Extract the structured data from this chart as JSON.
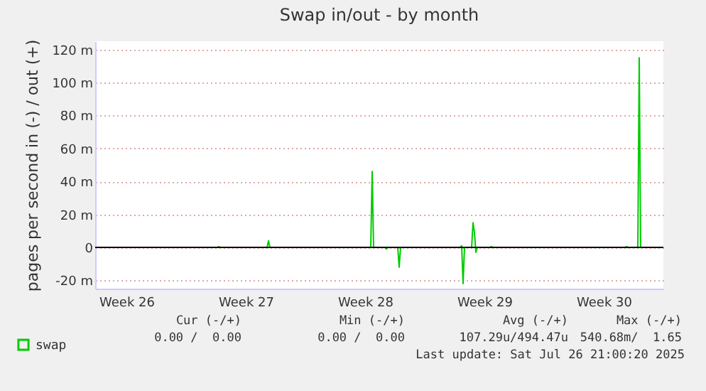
{
  "chart_data": {
    "type": "line",
    "title": "Swap in/out - by month",
    "ylabel": "pages per second in (-) / out (+)",
    "x": [
      "2025-06-24T16:00",
      "2025-07-01T20:00",
      "2025-07-01T22:00",
      "2025-07-02T00:00",
      "2025-07-04T18:00",
      "2025-07-04T20:00",
      "2025-07-04T22:00",
      "2025-07-10T20:00",
      "2025-07-10T22:00",
      "2025-07-11T00:00",
      "2025-07-11T16:00",
      "2025-07-11T18:00",
      "2025-07-11T20:00",
      "2025-07-12T10:00",
      "2025-07-12T12:00",
      "2025-07-12T14:00",
      "2025-07-16T02:00",
      "2025-07-16T04:00",
      "2025-07-16T06:00",
      "2025-07-16T08:00",
      "2025-07-16T18:00",
      "2025-07-16T20:00",
      "2025-07-16T22:00",
      "2025-07-17T00:00",
      "2025-07-17T02:00",
      "2025-07-17T20:00",
      "2025-07-17T22:00",
      "2025-07-18T00:00",
      "2025-07-25T18:00",
      "2025-07-25T20:00",
      "2025-07-25T22:00",
      "2025-07-26T12:00",
      "2025-07-26T14:00",
      "2025-07-26T16:00",
      "2025-07-26T20:00"
    ],
    "series": [
      {
        "name": "swap",
        "color": "#00cc00",
        "values": [
          0,
          0,
          0.5,
          0,
          0,
          4,
          0,
          0,
          46,
          0,
          0,
          -1,
          0,
          0,
          -12,
          0,
          0,
          1,
          -22,
          0,
          0,
          15,
          9,
          -3,
          0,
          0,
          0.5,
          0,
          0,
          0.5,
          0,
          0,
          115,
          0,
          0
        ]
      }
    ],
    "xlim": [
      "2025-06-24T16:00",
      "2025-07-28T00:00"
    ],
    "xticks": [
      {
        "value": "2025-06-26T12:00",
        "label": "Week 26"
      },
      {
        "value": "2025-07-03T12:00",
        "label": "Week 27"
      },
      {
        "value": "2025-07-10T12:00",
        "label": "Week 28"
      },
      {
        "value": "2025-07-17T12:00",
        "label": "Week 29"
      },
      {
        "value": "2025-07-24T12:00",
        "label": "Week 30"
      }
    ],
    "ylim": [
      -25,
      125
    ],
    "yticks": [
      {
        "value": -20,
        "label": "-20 m"
      },
      {
        "value": 0,
        "label": "0"
      },
      {
        "value": 20,
        "label": "20 m"
      },
      {
        "value": 40,
        "label": "40 m"
      },
      {
        "value": 60,
        "label": "60 m"
      },
      {
        "value": 80,
        "label": "80 m"
      },
      {
        "value": 100,
        "label": "100 m"
      },
      {
        "value": 120,
        "label": "120 m"
      }
    ],
    "grid": "y",
    "legend": "bottom left",
    "ref_lines": [
      {
        "axis": "y",
        "value": 0,
        "color": "#000000"
      }
    ],
    "annotations": [
      "Cur (-/+)",
      "Min (-/+)",
      "Avg (-/+)",
      "Max (-/+)",
      "0.00 /  0.00",
      "0.00 /  0.00",
      "107.29u/494.47u",
      "540.68m/  1.65",
      "Last update: Sat Jul 26 21:00:20 2025"
    ]
  }
}
